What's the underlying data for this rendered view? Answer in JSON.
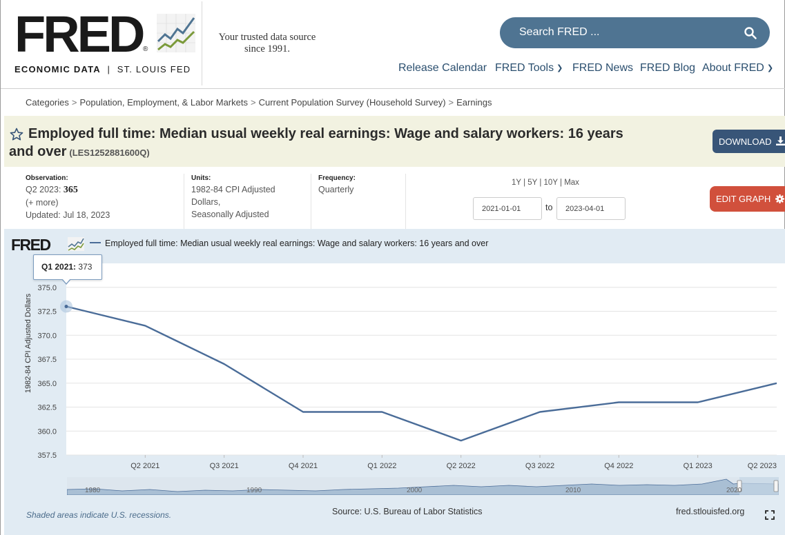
{
  "header": {
    "logo_text": "FRED",
    "logo_reg": "®",
    "logo_sub_bold": "ECONOMIC DATA",
    "logo_sub_sep": "|",
    "logo_sub_rest": "ST. LOUIS FED",
    "tagline_line1": "Your trusted data source",
    "tagline_line2": "since 1991.",
    "search_placeholder": "Search FRED ...",
    "nav": {
      "release_calendar": "Release Calendar",
      "fred_tools": "FRED Tools",
      "fred_news": "FRED News",
      "fred_blog": "FRED Blog",
      "about_fred": "About FRED"
    }
  },
  "breadcrumb": [
    "Categories",
    "Population, Employment, & Labor Markets",
    "Current Population Survey (Household Survey)",
    "Earnings"
  ],
  "breadcrumb_sep": ">",
  "series": {
    "title_line1": "Employed full time: Median usual weekly real earnings: Wage and salary workers: 16 years",
    "title_line2": "and over",
    "code": "(LES1252881600Q)",
    "download_label": "DOWNLOAD",
    "observation_label": "Observation:",
    "observation_period": "Q2 2023:",
    "observation_value": "365",
    "more": "(+ more)",
    "updated": "Updated: Jul 18, 2023",
    "units_label": "Units:",
    "units_line1": "1982-84 CPI Adjusted",
    "units_line2": "Dollars,",
    "units_line3": "Seasonally Adjusted",
    "frequency_label": "Frequency:",
    "frequency": "Quarterly"
  },
  "controls": {
    "range_1y": "1Y",
    "range_5y": "5Y",
    "range_10y": "10Y",
    "range_max": "Max",
    "range_sep": "|",
    "start_date": "2021-01-01",
    "to_label": "to",
    "end_date": "2023-04-01",
    "edit_label": "EDIT GRAPH"
  },
  "chart_meta": {
    "logo_text": "FRED",
    "legend": "Employed full time: Median usual weekly real earnings: Wage and salary workers: 16 years and over",
    "tooltip_period": "Q1 2021:",
    "tooltip_value": "373",
    "footer_note": "Shaded areas indicate U.S. recessions.",
    "source": "Source: U.S. Bureau of Labor Statistics",
    "site": "fred.stlouisfed.org",
    "navigator_labels": [
      "1980",
      "1990",
      "2000",
      "2010",
      "2020"
    ]
  },
  "colors": {
    "line": "#4a6c98",
    "panel_bg": "#e1ebf3",
    "search_bg": "#4f7492",
    "download_bg": "#385578",
    "edit_bg": "#d1503c",
    "title_band": "#f2f2e1"
  },
  "chart_data": {
    "type": "line",
    "x": [
      "Q1 2021",
      "Q2 2021",
      "Q3 2021",
      "Q4 2021",
      "Q1 2022",
      "Q2 2022",
      "Q3 2022",
      "Q4 2022",
      "Q1 2023",
      "Q2 2023"
    ],
    "series": [
      {
        "values": [
          373,
          371,
          367,
          362,
          362,
          359,
          362,
          363,
          363,
          365
        ]
      }
    ],
    "x_tick_labels": [
      "Q2 2021",
      "Q3 2021",
      "Q4 2021",
      "Q1 2022",
      "Q2 2022",
      "Q3 2022",
      "Q4 2022",
      "Q1 2023",
      "Q2 2023"
    ],
    "ylabel": "1982-84 CPI Adjusted Dollars",
    "yticks": [
      357.5,
      360.0,
      362.5,
      365.0,
      367.5,
      370.0,
      372.5,
      375.0
    ],
    "ylim": [
      357.5,
      377.5
    ],
    "grid": true
  }
}
